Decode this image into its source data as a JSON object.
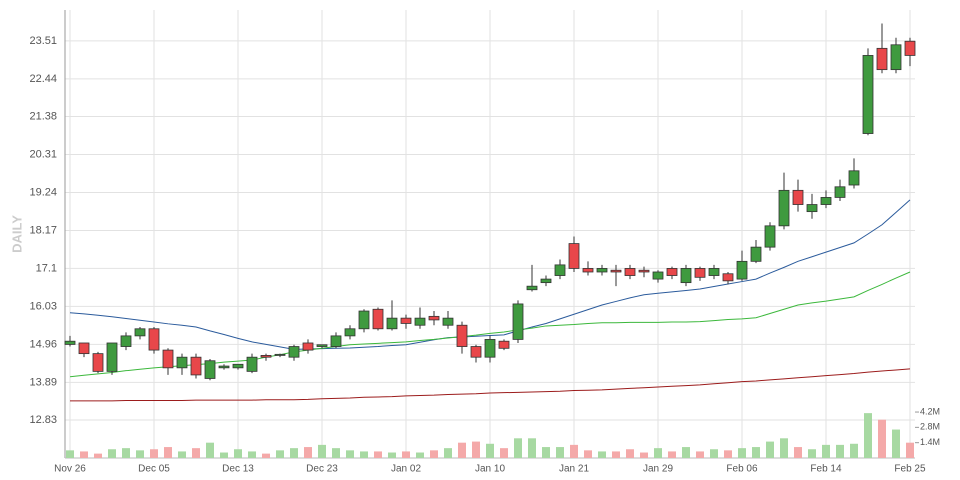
{
  "chart_data": {
    "type": "candlestick",
    "y_label": "DAILY",
    "categories": [
      "Nov 26",
      null,
      null,
      null,
      null,
      null,
      "Dec 05",
      null,
      null,
      null,
      null,
      null,
      "Dec 13",
      null,
      null,
      null,
      null,
      null,
      "Dec 23",
      null,
      null,
      null,
      null,
      null,
      "Jan 02",
      null,
      null,
      null,
      null,
      null,
      "Jan 10",
      null,
      null,
      null,
      null,
      null,
      "Jan 21",
      null,
      null,
      null,
      null,
      null,
      "Jan 29",
      null,
      null,
      null,
      null,
      null,
      "Feb 06",
      null,
      null,
      null,
      null,
      null,
      "Feb 14",
      null,
      null,
      null,
      null,
      null,
      "Feb 25"
    ],
    "open": [
      14.96,
      15.0,
      14.7,
      14.2,
      14.9,
      15.2,
      15.4,
      14.8,
      14.3,
      14.6,
      14.0,
      14.3,
      14.3,
      14.2,
      14.65,
      14.65,
      14.6,
      15.0,
      14.9,
      14.9,
      15.2,
      15.4,
      15.95,
      15.4,
      15.7,
      15.5,
      15.75,
      15.5,
      15.5,
      14.9,
      14.6,
      15.05,
      15.1,
      16.5,
      16.7,
      16.9,
      17.8,
      17.1,
      17.0,
      17.05,
      17.1,
      17.05,
      16.8,
      17.1,
      16.7,
      17.1,
      16.9,
      16.95,
      16.8,
      17.3,
      17.7,
      18.3,
      19.3,
      18.7,
      18.9,
      19.1,
      19.45,
      20.9,
      23.3,
      22.7,
      23.5
    ],
    "high": [
      15.2,
      15.0,
      14.75,
      15.0,
      15.3,
      15.45,
      15.45,
      14.85,
      14.7,
      14.7,
      14.55,
      14.4,
      14.4,
      14.7,
      14.7,
      14.7,
      14.95,
      15.1,
      14.95,
      15.3,
      15.5,
      15.95,
      16.0,
      16.2,
      15.8,
      16.0,
      15.9,
      15.9,
      15.6,
      14.95,
      15.2,
      15.1,
      16.2,
      17.2,
      16.9,
      17.35,
      18.0,
      17.3,
      17.2,
      17.2,
      17.2,
      17.15,
      17.05,
      17.15,
      17.2,
      17.15,
      17.2,
      17.0,
      17.6,
      17.9,
      18.4,
      19.8,
      19.6,
      19.2,
      19.3,
      19.6,
      20.2,
      23.3,
      24.0,
      23.6,
      23.6
    ],
    "low": [
      14.9,
      14.6,
      14.15,
      14.1,
      14.8,
      15.1,
      14.7,
      14.1,
      14.1,
      14.0,
      13.95,
      14.25,
      14.25,
      14.15,
      14.5,
      14.6,
      14.5,
      14.7,
      14.85,
      14.85,
      15.1,
      15.3,
      15.35,
      15.35,
      15.4,
      15.4,
      15.5,
      15.4,
      14.7,
      14.45,
      14.45,
      14.8,
      15.0,
      16.45,
      16.6,
      16.8,
      17.0,
      16.9,
      16.9,
      16.6,
      16.8,
      16.85,
      16.7,
      16.8,
      16.6,
      16.75,
      16.8,
      16.65,
      16.75,
      17.25,
      17.6,
      18.2,
      18.7,
      18.5,
      18.8,
      19.0,
      19.35,
      20.85,
      22.6,
      22.6,
      22.8
    ],
    "close": [
      15.05,
      14.7,
      14.2,
      15.0,
      15.2,
      15.4,
      14.8,
      14.3,
      14.6,
      14.1,
      14.5,
      14.35,
      14.4,
      14.6,
      14.6,
      14.68,
      14.9,
      14.8,
      14.95,
      15.2,
      15.4,
      15.9,
      15.4,
      15.7,
      15.55,
      15.7,
      15.65,
      15.7,
      14.9,
      14.6,
      15.1,
      14.85,
      16.1,
      16.6,
      16.8,
      17.2,
      17.1,
      17.0,
      17.1,
      17.0,
      16.9,
      17.0,
      17.0,
      16.9,
      17.1,
      16.85,
      17.1,
      16.75,
      17.3,
      17.7,
      18.3,
      19.3,
      18.9,
      18.9,
      19.1,
      19.4,
      19.85,
      23.1,
      22.7,
      23.4,
      23.1
    ],
    "up_color": "#3f9a3f",
    "down_color": "#e8474a",
    "volume": {
      "axis": "y2",
      "up_color": "#a7d9a2",
      "down_color": "#f4a9a9",
      "values": [
        0.7,
        0.6,
        0.4,
        0.8,
        0.9,
        0.7,
        0.8,
        1.0,
        0.6,
        0.9,
        1.4,
        0.5,
        0.8,
        0.6,
        0.4,
        0.7,
        0.9,
        1.0,
        1.2,
        0.9,
        0.7,
        0.6,
        0.6,
        0.5,
        0.6,
        0.5,
        0.7,
        0.9,
        1.4,
        1.5,
        1.3,
        0.9,
        1.8,
        1.8,
        1.0,
        1.0,
        1.2,
        0.7,
        0.6,
        0.6,
        0.8,
        0.5,
        0.9,
        0.6,
        1.0,
        0.6,
        0.8,
        0.7,
        0.9,
        1.0,
        1.5,
        1.8,
        1.0,
        0.8,
        1.2,
        1.2,
        1.3,
        4.1,
        3.5,
        2.6,
        1.4
      ]
    },
    "series": [
      {
        "color": "#2b5b9c",
        "values": [
          15.85,
          15.82,
          15.78,
          15.74,
          15.69,
          15.64,
          15.59,
          15.54,
          15.5,
          15.45,
          15.34,
          15.24,
          15.13,
          15.03,
          14.96,
          14.89,
          14.82,
          14.83,
          14.84,
          14.85,
          14.86,
          14.88,
          14.9,
          14.93,
          14.95,
          15.02,
          15.09,
          15.15,
          15.17,
          15.19,
          15.21,
          15.23,
          15.34,
          15.45,
          15.55,
          15.68,
          15.81,
          15.94,
          16.07,
          16.17,
          16.27,
          16.36,
          16.4,
          16.44,
          16.48,
          16.52,
          16.59,
          16.66,
          16.73,
          16.8,
          16.97,
          17.13,
          17.3,
          17.43,
          17.56,
          17.69,
          17.82,
          18.07,
          18.33,
          18.68,
          19.03
        ]
      },
      {
        "color": "#3cb83c",
        "values": [
          14.05,
          14.09,
          14.13,
          14.17,
          14.22,
          14.26,
          14.3,
          14.33,
          14.36,
          14.39,
          14.42,
          14.46,
          14.49,
          14.52,
          14.6,
          14.67,
          14.75,
          14.8,
          14.85,
          14.9,
          14.95,
          14.97,
          14.99,
          15.01,
          15.03,
          15.07,
          15.1,
          15.14,
          15.18,
          15.22,
          15.27,
          15.31,
          15.37,
          15.42,
          15.48,
          15.5,
          15.52,
          15.55,
          15.57,
          15.57,
          15.58,
          15.58,
          15.58,
          15.59,
          15.59,
          15.6,
          15.63,
          15.66,
          15.68,
          15.71,
          15.83,
          15.95,
          16.07,
          16.13,
          16.18,
          16.24,
          16.3,
          16.48,
          16.65,
          16.83,
          17.0
        ]
      },
      {
        "color": "#9c1c1c",
        "values": [
          13.37,
          13.37,
          13.37,
          13.37,
          13.38,
          13.38,
          13.38,
          13.38,
          13.38,
          13.39,
          13.39,
          13.39,
          13.39,
          13.39,
          13.4,
          13.4,
          13.4,
          13.41,
          13.43,
          13.44,
          13.45,
          13.47,
          13.48,
          13.49,
          13.51,
          13.52,
          13.53,
          13.55,
          13.56,
          13.57,
          13.59,
          13.6,
          13.61,
          13.62,
          13.63,
          13.64,
          13.66,
          13.67,
          13.68,
          13.7,
          13.72,
          13.74,
          13.76,
          13.78,
          13.8,
          13.82,
          13.85,
          13.88,
          13.91,
          13.93,
          13.96,
          13.99,
          14.02,
          14.05,
          14.08,
          14.11,
          14.14,
          14.18,
          14.21,
          14.24,
          14.27
        ]
      }
    ],
    "ylim": [
      11.76,
      24.38
    ],
    "yticks": [
      12.83,
      13.89,
      14.96,
      16.03,
      17.1,
      18.17,
      19.24,
      20.31,
      21.38,
      22.44,
      23.51
    ],
    "y2lim": [
      0,
      5.3
    ],
    "y2ticks": [
      {
        "value": 1.4,
        "label": "1.4M"
      },
      {
        "value": 2.8,
        "label": "2.8M"
      },
      {
        "value": 4.2,
        "label": "4.2M"
      }
    ],
    "grid": true
  }
}
